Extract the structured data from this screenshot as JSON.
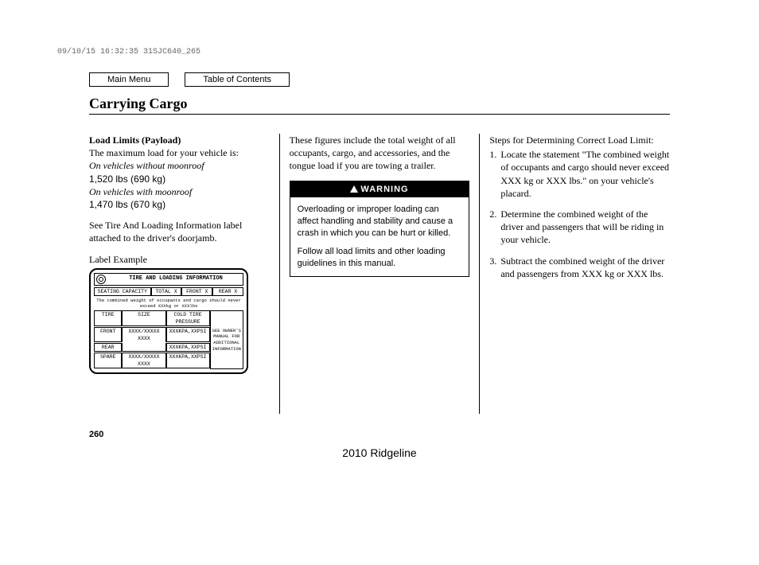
{
  "timestamp": "09/10/15 16:32:35 31SJC640_265",
  "nav": {
    "main_menu": "Main Menu",
    "toc": "Table of Contents"
  },
  "title": "Carrying Cargo",
  "col1": {
    "heading": "Load Limits (Payload)",
    "intro": "The maximum load for your vehicle is:",
    "variant_a_label": "On vehicles without moonroof",
    "variant_a_value": "1,520 lbs (690 kg)",
    "variant_b_label": "On vehicles with moonroof",
    "variant_b_value": "1,470 lbs (670 kg)",
    "see_label": "See Tire And Loading Information label attached to the driver's doorjamb.",
    "label_caption": "Label Example",
    "label_graphic": {
      "title": "TIRE AND LOADING INFORMATION",
      "seating": "SEATING CAPACITY",
      "total": "TOTAL X",
      "front": "FRONT X",
      "rear": "REAR X",
      "note": "The combined weight of occupants and cargo should never exceed XXXkg or XXXlbs",
      "tire": "TIRE",
      "size": "SIZE",
      "pressure": "COLD TIRE PRESSURE",
      "front_r": "FRONT",
      "rear_r": "REAR",
      "spare_r": "SPARE",
      "size_v": "XXXX/XXXXX XXXX",
      "press_v": "XXXKPA,XXPSI",
      "side": "SEE OWNER'S MANUAL FOR ADDITIONAL INFORMATION"
    }
  },
  "col2": {
    "intro": "These figures include the total weight of all occupants, cargo, and accessories, and the tongue load if you are towing a trailer.",
    "warning_title": "WARNING",
    "warning_p1": "Overloading or improper loading can affect handling and stability and cause a crash in which you can be hurt or killed.",
    "warning_p2": "Follow all load limits and other loading guidelines in this manual."
  },
  "col3": {
    "intro": "Steps for Determining Correct Load Limit:",
    "step1": "Locate the statement \"The combined weight of occupants and cargo should never exceed XXX kg or XXX lbs.\" on your vehicle's placard.",
    "step2": "Determine the combined weight of the driver and passengers that will be riding in your vehicle.",
    "step3": "Subtract the combined weight of the driver and passengers from XXX kg or XXX lbs."
  },
  "page_num": "260",
  "footer_model": "2010 Ridgeline"
}
